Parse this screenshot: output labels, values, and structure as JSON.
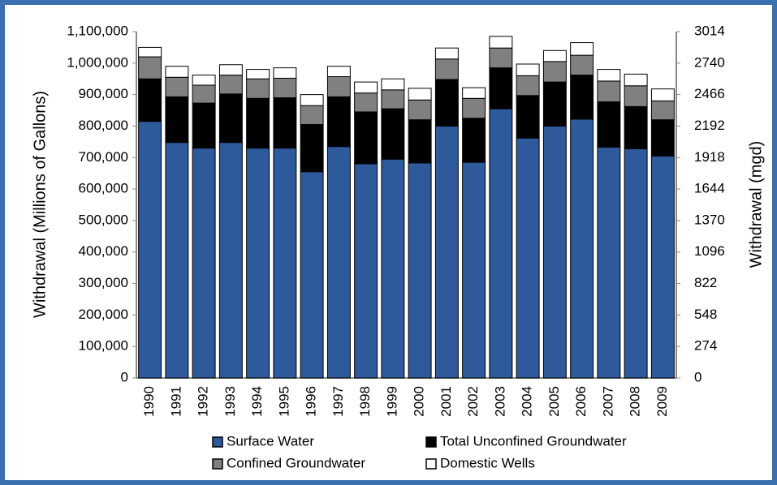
{
  "chart_data": {
    "type": "stacked_bar",
    "categories": [
      "1990",
      "1991",
      "1992",
      "1993",
      "1994",
      "1995",
      "1996",
      "1997",
      "1998",
      "1999",
      "2000",
      "2001",
      "2002",
      "2003",
      "2004",
      "2005",
      "2006",
      "2007",
      "2008",
      "2009"
    ],
    "series": [
      {
        "name": "Surface Water",
        "color": "#2e5a9c",
        "values": [
          815000,
          748000,
          730000,
          748000,
          730000,
          730000,
          655000,
          735000,
          680000,
          695000,
          683000,
          800000,
          685000,
          855000,
          762000,
          800000,
          822000,
          733000,
          728000,
          705000
        ]
      },
      {
        "name": "Total Unconfined Groundwater",
        "color": "#000000",
        "values": [
          135000,
          145000,
          143000,
          154000,
          158000,
          160000,
          150000,
          158000,
          165000,
          160000,
          137000,
          148000,
          140000,
          130000,
          135000,
          140000,
          140000,
          144000,
          134000,
          115000
        ]
      },
      {
        "name": "Confined Groundwater",
        "color": "#808080",
        "values": [
          70000,
          62000,
          57000,
          60000,
          62000,
          62000,
          60000,
          64000,
          60000,
          60000,
          63000,
          65000,
          63000,
          63000,
          63000,
          65000,
          63000,
          66000,
          66000,
          60000
        ]
      },
      {
        "name": "Domestic Wells",
        "color": "#ffffff",
        "values": [
          30000,
          35000,
          32000,
          33000,
          30000,
          33000,
          35000,
          33000,
          35000,
          35000,
          37000,
          35000,
          34000,
          37000,
          37000,
          35000,
          40000,
          37000,
          37000,
          38000
        ]
      }
    ],
    "y_label": "Withdrawal (Millions of Gallons)",
    "y2_label": "Withdrawal (mgd)",
    "ylim": [
      0,
      1100000
    ],
    "yticks": [
      0,
      {
        "value": 100000,
        "label": "100,000"
      },
      {
        "value": 200000,
        "label": "200,000"
      },
      {
        "value": 300000,
        "label": "300,000"
      },
      {
        "value": 400000,
        "label": "400,000"
      },
      {
        "value": 500000,
        "label": "500,000"
      },
      {
        "value": 600000,
        "label": "600,000"
      },
      {
        "value": 700000,
        "label": "700,000"
      },
      {
        "value": 800000,
        "label": "800,000"
      },
      {
        "value": 900000,
        "label": "900,000"
      },
      {
        "value": 1000000,
        "label": "1,000,000"
      },
      {
        "value": 1100000,
        "label": "1,100,000"
      }
    ],
    "y2lim": [
      0,
      3014
    ],
    "y2ticks": [
      0,
      274,
      548,
      822,
      1096,
      1370,
      1644,
      1918,
      2192,
      2466,
      2740,
      3014
    ],
    "grid": false,
    "legend": "bottom"
  }
}
